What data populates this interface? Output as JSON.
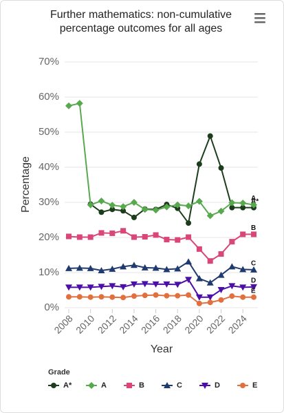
{
  "chart_data": {
    "type": "line",
    "title": "Further mathematics: non-cumulative percentage outcomes for all ages",
    "x_label": "Year",
    "y_label": "Percentage",
    "legend_title": "Grade",
    "x": [
      2008,
      2009,
      2010,
      2011,
      2012,
      2013,
      2014,
      2015,
      2016,
      2017,
      2018,
      2019,
      2020,
      2021,
      2022,
      2023,
      2024,
      2025
    ],
    "xlim": [
      2008,
      2025
    ],
    "xticks": [
      2008,
      2010,
      2012,
      2014,
      2016,
      2018,
      2020,
      2022,
      2024
    ],
    "ylim": [
      0,
      70
    ],
    "yticks": [
      {
        "value": 0,
        "label": "0%"
      },
      {
        "value": 10,
        "label": "10%"
      },
      {
        "value": 20,
        "label": "20%"
      },
      {
        "value": 30,
        "label": "30%"
      },
      {
        "value": 40,
        "label": "40%"
      },
      {
        "value": 50,
        "label": "50%"
      },
      {
        "value": 60,
        "label": "60%"
      },
      {
        "value": 70,
        "label": "70%"
      }
    ],
    "grid": true,
    "series": [
      {
        "name": "A*",
        "color": "#1b3d1b",
        "marker": "circle",
        "values": [
          null,
          null,
          29.5,
          27.2,
          28.0,
          27.6,
          25.7,
          28.1,
          28.0,
          29.4,
          28.3,
          24.1,
          40.9,
          48.9,
          39.8,
          28.5,
          28.5,
          28.5
        ]
      },
      {
        "name": "A",
        "color": "#58a84e",
        "marker": "diamond",
        "values": [
          57.5,
          58.2,
          29.3,
          30.4,
          29.2,
          28.8,
          30.0,
          28.0,
          27.8,
          28.7,
          29.3,
          29.0,
          30.3,
          26.2,
          27.5,
          29.9,
          29.8,
          29.3
        ]
      },
      {
        "name": "B",
        "color": "#d9467a",
        "marker": "square",
        "values": [
          20.3,
          20.1,
          20.1,
          21.3,
          21.2,
          21.9,
          20.1,
          20.2,
          20.7,
          19.4,
          19.3,
          20.1,
          16.7,
          13.3,
          15.3,
          18.8,
          20.9,
          20.9
        ]
      },
      {
        "name": "C",
        "color": "#1f3a6e",
        "marker": "triangle-up",
        "values": [
          11.2,
          11.3,
          11.2,
          10.6,
          11.0,
          11.7,
          12.1,
          11.4,
          11.3,
          10.9,
          11.1,
          13.1,
          8.3,
          7.1,
          9.3,
          11.7,
          10.9,
          10.8
        ]
      },
      {
        "name": "D",
        "color": "#4b0fa8",
        "marker": "triangle-down",
        "values": [
          5.8,
          5.8,
          5.8,
          6.0,
          6.2,
          5.9,
          6.7,
          6.8,
          6.7,
          6.7,
          6.6,
          8.0,
          3.0,
          3.0,
          5.1,
          6.2,
          5.8,
          5.9
        ]
      },
      {
        "name": "E",
        "color": "#e2703f",
        "marker": "circle",
        "values": [
          3.1,
          3.1,
          3.0,
          3.1,
          3.0,
          2.9,
          3.3,
          3.5,
          3.6,
          3.4,
          3.4,
          3.6,
          1.2,
          1.5,
          2.2,
          3.3,
          3.0,
          3.0
        ]
      }
    ]
  }
}
